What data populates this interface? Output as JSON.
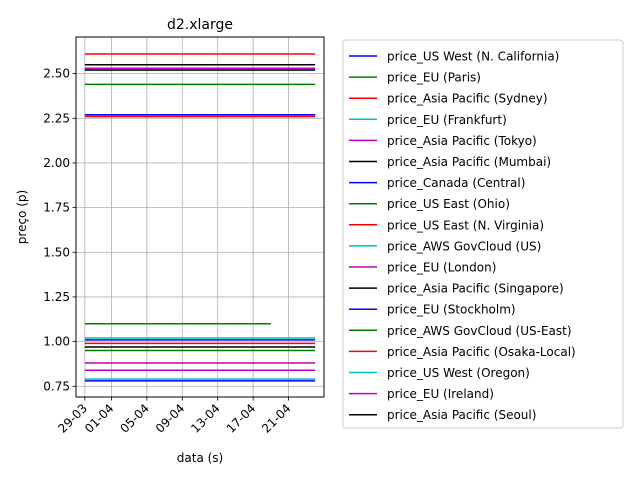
{
  "chart_data": {
    "type": "line",
    "title": "d2.xlarge",
    "xlabel": "data (s)",
    "ylabel": "preço (p)",
    "x_tick_labels": [
      "29-03",
      "01-04",
      "05-04",
      "09-04",
      "13-04",
      "17-04",
      "21-04"
    ],
    "x_tick_dates": [
      "2018-03-29",
      "2018-04-01",
      "2018-04-05",
      "2018-04-09",
      "2018-04-13",
      "2018-04-17",
      "2018-04-21"
    ],
    "xlim": [
      "2018-03-28",
      "2018-04-25"
    ],
    "y_ticks": [
      0.75,
      1.0,
      1.25,
      1.5,
      1.75,
      2.0,
      2.25,
      2.5
    ],
    "y_tick_labels": [
      "0.75",
      "1.00",
      "1.25",
      "1.50",
      "1.75",
      "2.00",
      "2.25",
      "2.50"
    ],
    "ylim": [
      0.69,
      2.705
    ],
    "grid": true,
    "legend_position": "outside-right",
    "series": [
      {
        "name": "price_US West (N. California)",
        "color": "#0000ff",
        "x": [
          "2018-03-29",
          "2018-04-24"
        ],
        "y": [
          2.27,
          2.27
        ]
      },
      {
        "name": "price_EU (Paris)",
        "color": "#008000",
        "x": [
          "2018-03-29",
          "2018-04-24"
        ],
        "y": [
          2.44,
          2.44
        ]
      },
      {
        "name": "price_Asia Pacific (Sydney)",
        "color": "#ff0000",
        "x": [
          "2018-03-29",
          "2018-04-24"
        ],
        "y": [
          2.61,
          2.61
        ]
      },
      {
        "name": "price_EU (Frankfurt)",
        "color": "#00bfbf",
        "x": [
          "2018-03-29",
          "2018-04-24"
        ],
        "y": [
          2.52,
          2.52
        ]
      },
      {
        "name": "price_Asia Pacific (Tokyo)",
        "color": "#bf00bf",
        "x": [
          "2018-03-29",
          "2018-04-24"
        ],
        "y": [
          2.53,
          2.53
        ]
      },
      {
        "name": "price_Asia Pacific (Mumbai)",
        "color": "#000000",
        "x": [
          "2018-03-29",
          "2018-04-24"
        ],
        "y": [
          2.55,
          2.55
        ]
      },
      {
        "name": "price_Canada (Central)",
        "color": "#0000ff",
        "x": [
          "2018-03-29",
          "2018-04-24"
        ],
        "y": [
          1.01,
          1.01
        ]
      },
      {
        "name": "price_US East (Ohio)",
        "color": "#008000",
        "x": [
          "2018-03-29",
          "2018-04-24"
        ],
        "y": [
          0.95,
          0.95
        ]
      },
      {
        "name": "price_US East (N. Virginia)",
        "color": "#ff0000",
        "x": [
          "2018-03-29",
          "2018-04-24"
        ],
        "y": [
          0.99,
          0.99
        ]
      },
      {
        "name": "price_AWS GovCloud (US)",
        "color": "#00bfbf",
        "x": [
          "2018-03-29",
          "2018-04-24"
        ],
        "y": [
          1.02,
          1.02
        ]
      },
      {
        "name": "price_EU (London)",
        "color": "#bf00bf",
        "x": [
          "2018-03-29",
          "2018-04-24"
        ],
        "y": [
          0.84,
          0.84
        ]
      },
      {
        "name": "price_Asia Pacific (Singapore)",
        "color": "#000000",
        "x": [
          "2018-03-29",
          "2018-04-24"
        ],
        "y": [
          0.97,
          0.97
        ]
      },
      {
        "name": "price_EU (Stockholm)",
        "color": "#0000ff",
        "x": [
          "2018-03-29",
          "2018-04-24"
        ],
        "y": [
          0.78,
          0.78
        ]
      },
      {
        "name": "price_AWS GovCloud (US-East)",
        "color": "#008000",
        "x": [
          "2018-03-29",
          "2018-04-19"
        ],
        "y": [
          1.1,
          1.1
        ]
      },
      {
        "name": "price_Asia Pacific (Osaka-Local)",
        "color": "#ff0000",
        "x": [
          "2018-03-29",
          "2018-04-24"
        ],
        "y": [
          2.26,
          2.26
        ]
      },
      {
        "name": "price_US West (Oregon)",
        "color": "#00bfbf",
        "x": [
          "2018-03-29",
          "2018-04-24"
        ],
        "y": [
          0.79,
          0.79
        ]
      },
      {
        "name": "price_EU (Ireland)",
        "color": "#bf00bf",
        "x": [
          "2018-03-29",
          "2018-04-24"
        ],
        "y": [
          0.88,
          0.88
        ]
      },
      {
        "name": "price_Asia Pacific (Seoul)",
        "color": "#000000",
        "x": [
          "2018-03-29",
          "2018-04-24"
        ],
        "y": [
          2.52,
          2.52
        ]
      }
    ]
  }
}
